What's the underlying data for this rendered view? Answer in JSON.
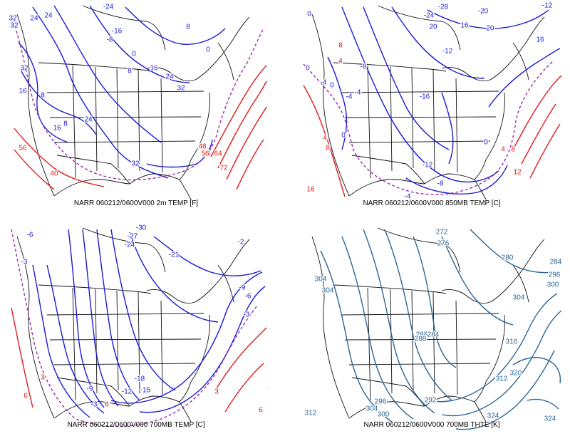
{
  "colors": {
    "cold_contour": "#1a1ad6",
    "warm_contour": "#e01b1b",
    "freezing_dash": "#9a2ab0",
    "theta_contour": "#2a6496",
    "map_outline": "#111111"
  },
  "panels": [
    {
      "caption": "NARR 060212/0600V000 2m TEMP [F]",
      "labels": [
        {
          "text": "-24",
          "color": "cold"
        },
        {
          "text": "24",
          "color": "cold"
        },
        {
          "text": "24",
          "color": "cold"
        },
        {
          "text": "-16",
          "color": "cold"
        },
        {
          "text": "-8",
          "color": "cold"
        },
        {
          "text": "8",
          "color": "cold"
        },
        {
          "text": "0",
          "color": "cold"
        },
        {
          "text": "8",
          "color": "cold"
        },
        {
          "text": "16",
          "color": "cold"
        },
        {
          "text": "24",
          "color": "cold"
        },
        {
          "text": "32",
          "color": "cold"
        },
        {
          "text": "32",
          "color": "cold"
        },
        {
          "text": "32",
          "color": "cold"
        },
        {
          "text": "16",
          "color": "cold"
        },
        {
          "text": "8",
          "color": "cold"
        },
        {
          "text": "16",
          "color": "cold"
        },
        {
          "text": "8",
          "color": "cold"
        },
        {
          "text": "24",
          "color": "cold"
        },
        {
          "text": "0",
          "color": "cold"
        },
        {
          "text": "32",
          "color": "cold"
        },
        {
          "text": "32",
          "color": "cold"
        },
        {
          "text": "56",
          "color": "warm"
        },
        {
          "text": "40",
          "color": "warm"
        },
        {
          "text": "48",
          "color": "warm"
        },
        {
          "text": "48",
          "color": "warm"
        },
        {
          "text": "56",
          "color": "warm"
        },
        {
          "text": "64",
          "color": "warm"
        },
        {
          "text": "72",
          "color": "warm"
        }
      ]
    },
    {
      "caption": "NARR 060212/0600V000 850MB TEMP [C]",
      "labels": [
        {
          "text": "0",
          "color": "cold"
        },
        {
          "text": "-24",
          "color": "cold"
        },
        {
          "text": "-28",
          "color": "cold"
        },
        {
          "text": "-20",
          "color": "cold"
        },
        {
          "text": "-12",
          "color": "cold"
        },
        {
          "text": "20",
          "color": "cold"
        },
        {
          "text": "16",
          "color": "cold"
        },
        {
          "text": "20",
          "color": "cold"
        },
        {
          "text": "16",
          "color": "cold"
        },
        {
          "text": "-12",
          "color": "cold"
        },
        {
          "text": "-8",
          "color": "cold"
        },
        {
          "text": "4",
          "color": "warm"
        },
        {
          "text": "8",
          "color": "warm"
        },
        {
          "text": "0",
          "color": "cold"
        },
        {
          "text": "-4",
          "color": "cold"
        },
        {
          "text": "0",
          "color": "cold"
        },
        {
          "text": "-4",
          "color": "cold"
        },
        {
          "text": "-4",
          "color": "cold"
        },
        {
          "text": "-16",
          "color": "cold"
        },
        {
          "text": "0",
          "color": "cold"
        },
        {
          "text": "4",
          "color": "warm"
        },
        {
          "text": "8",
          "color": "warm"
        },
        {
          "text": "-12",
          "color": "cold"
        },
        {
          "text": "-8",
          "color": "cold"
        },
        {
          "text": "-4",
          "color": "cold"
        },
        {
          "text": "0",
          "color": "cold"
        },
        {
          "text": "4",
          "color": "warm"
        },
        {
          "text": "8",
          "color": "warm"
        },
        {
          "text": "12",
          "color": "warm"
        },
        {
          "text": "16",
          "color": "warm"
        }
      ]
    },
    {
      "caption": "NARR 060212/0600V000 700MB TEMP [C]",
      "labels": [
        {
          "text": "-6",
          "color": "cold"
        },
        {
          "text": "-3",
          "color": "cold"
        },
        {
          "text": "-30",
          "color": "cold"
        },
        {
          "text": "-27",
          "color": "cold"
        },
        {
          "text": "-24",
          "color": "cold"
        },
        {
          "text": "-21",
          "color": "cold"
        },
        {
          "text": "-2",
          "color": "cold"
        },
        {
          "text": "-9",
          "color": "cold"
        },
        {
          "text": "-6",
          "color": "cold"
        },
        {
          "text": "-3",
          "color": "cold"
        },
        {
          "text": "-18",
          "color": "cold"
        },
        {
          "text": "-9",
          "color": "cold"
        },
        {
          "text": "-12",
          "color": "cold"
        },
        {
          "text": "-15",
          "color": "cold"
        },
        {
          "text": "3",
          "color": "warm"
        },
        {
          "text": "6",
          "color": "warm"
        },
        {
          "text": "-3",
          "color": "cold"
        },
        {
          "text": "6",
          "color": "warm"
        },
        {
          "text": "3",
          "color": "warm"
        },
        {
          "text": "6",
          "color": "warm"
        },
        {
          "text": "6",
          "color": "warm"
        }
      ]
    },
    {
      "caption": "NARR 060212/0600V000 700MB THTE [K]",
      "labels": [
        {
          "text": "272",
          "color": "theta"
        },
        {
          "text": "276",
          "color": "theta"
        },
        {
          "text": "280",
          "color": "theta"
        },
        {
          "text": "284",
          "color": "theta"
        },
        {
          "text": "288",
          "color": "theta"
        },
        {
          "text": "296",
          "color": "theta"
        },
        {
          "text": "300",
          "color": "theta"
        },
        {
          "text": "304",
          "color": "theta"
        },
        {
          "text": "304",
          "color": "theta"
        },
        {
          "text": "304",
          "color": "theta"
        },
        {
          "text": "288",
          "color": "theta"
        },
        {
          "text": "284",
          "color": "theta"
        },
        {
          "text": "316",
          "color": "theta"
        },
        {
          "text": "320",
          "color": "theta"
        },
        {
          "text": "312",
          "color": "theta"
        },
        {
          "text": "296",
          "color": "theta"
        },
        {
          "text": "304",
          "color": "theta"
        },
        {
          "text": "300",
          "color": "theta"
        },
        {
          "text": "292",
          "color": "theta"
        },
        {
          "text": "324",
          "color": "theta"
        },
        {
          "text": "312",
          "color": "theta"
        },
        {
          "text": "324",
          "color": "theta"
        }
      ]
    }
  ]
}
